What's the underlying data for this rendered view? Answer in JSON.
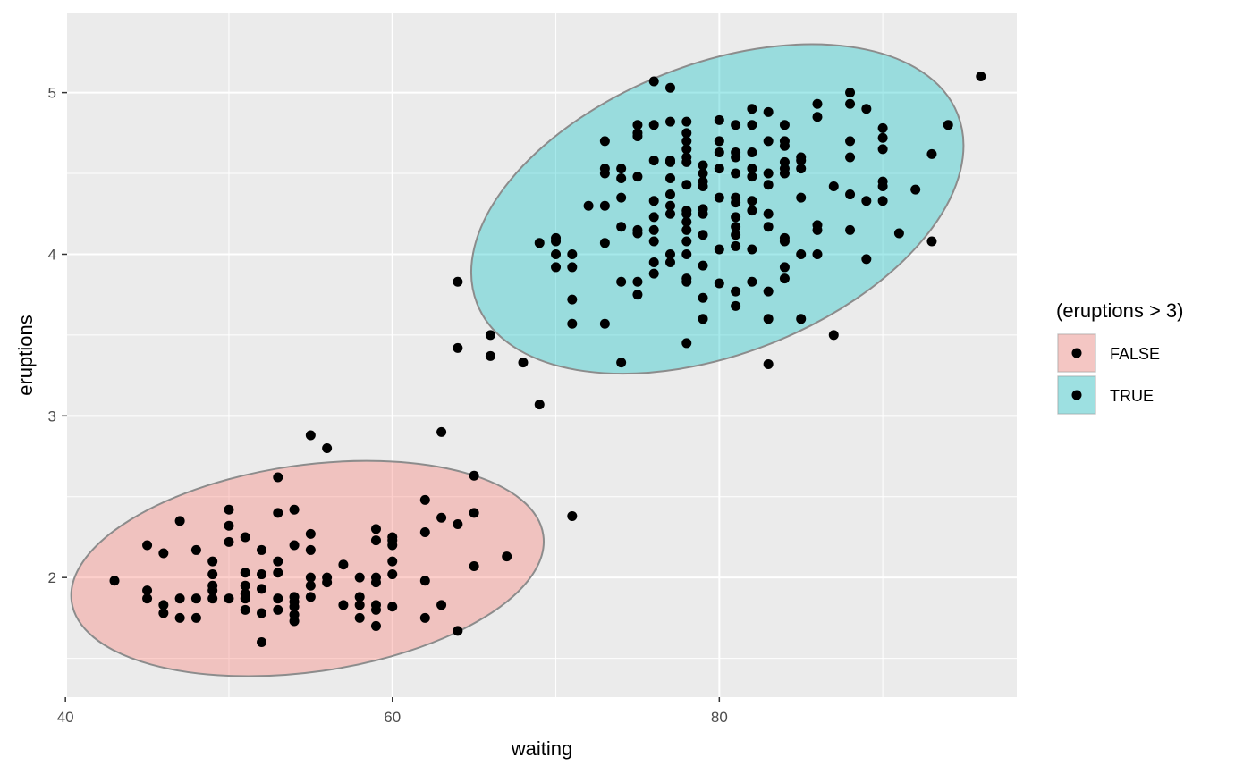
{
  "chart_data": {
    "type": "scatter",
    "title": "",
    "xlabel": "waiting",
    "ylabel": "eruptions",
    "xlim": [
      40.1,
      98.2
    ],
    "ylim": [
      1.26,
      5.49
    ],
    "x_ticks": [
      40,
      60,
      80
    ],
    "x_tick_labels": [
      "40",
      "60",
      "80"
    ],
    "y_ticks": [
      2,
      3,
      4,
      5
    ],
    "y_tick_labels": [
      "2",
      "3",
      "4",
      "5"
    ],
    "grid": true,
    "legend": {
      "title": "(eruptions > 3)",
      "position": "right",
      "entries": [
        {
          "label": "FALSE",
          "fill": "#F8766D"
        },
        {
          "label": "TRUE",
          "fill": "#00BFC4"
        }
      ]
    },
    "ellipses": [
      {
        "group": "FALSE",
        "fill": "#F8766D"
      },
      {
        "group": "TRUE",
        "fill": "#00BFC4"
      }
    ],
    "colors": {
      "panel": "#EBEBEB",
      "grid": "#FFFFFF",
      "point": "#000000",
      "ellipse_stroke": "#8C8C8C"
    },
    "points": [
      [
        43,
        1.98
      ],
      [
        45,
        1.87
      ],
      [
        45,
        1.92
      ],
      [
        45,
        2.2
      ],
      [
        46,
        1.78
      ],
      [
        46,
        1.83
      ],
      [
        46,
        2.15
      ],
      [
        47,
        1.75
      ],
      [
        47,
        1.87
      ],
      [
        47,
        2.35
      ],
      [
        48,
        1.75
      ],
      [
        48,
        1.87
      ],
      [
        48,
        2.17
      ],
      [
        49,
        1.87
      ],
      [
        49,
        1.92
      ],
      [
        49,
        1.95
      ],
      [
        49,
        2.02
      ],
      [
        49,
        2.1
      ],
      [
        50,
        1.87
      ],
      [
        50,
        2.22
      ],
      [
        50,
        2.32
      ],
      [
        50,
        2.42
      ],
      [
        51,
        1.8
      ],
      [
        51,
        1.87
      ],
      [
        51,
        1.9
      ],
      [
        51,
        1.95
      ],
      [
        51,
        2.03
      ],
      [
        51,
        2.25
      ],
      [
        52,
        1.6
      ],
      [
        52,
        1.78
      ],
      [
        52,
        1.93
      ],
      [
        52,
        2.02
      ],
      [
        52,
        2.17
      ],
      [
        53,
        1.8
      ],
      [
        53,
        1.87
      ],
      [
        53,
        2.03
      ],
      [
        53,
        2.1
      ],
      [
        53,
        2.4
      ],
      [
        53,
        2.62
      ],
      [
        54,
        1.73
      ],
      [
        54,
        1.77
      ],
      [
        54,
        1.82
      ],
      [
        54,
        1.85
      ],
      [
        54,
        1.88
      ],
      [
        54,
        2.2
      ],
      [
        54,
        2.42
      ],
      [
        55,
        1.88
      ],
      [
        55,
        1.95
      ],
      [
        55,
        2.0
      ],
      [
        55,
        2.17
      ],
      [
        55,
        2.27
      ],
      [
        55,
        2.88
      ],
      [
        56,
        1.97
      ],
      [
        56,
        2.0
      ],
      [
        56,
        2.8
      ],
      [
        57,
        1.83
      ],
      [
        57,
        2.08
      ],
      [
        58,
        1.75
      ],
      [
        58,
        1.83
      ],
      [
        58,
        1.88
      ],
      [
        58,
        2.0
      ],
      [
        59,
        1.7
      ],
      [
        59,
        1.8
      ],
      [
        59,
        1.83
      ],
      [
        59,
        1.97
      ],
      [
        59,
        2.0
      ],
      [
        59,
        2.23
      ],
      [
        59,
        2.3
      ],
      [
        60,
        1.82
      ],
      [
        60,
        2.02
      ],
      [
        60,
        2.1
      ],
      [
        60,
        2.2
      ],
      [
        60,
        2.23
      ],
      [
        60,
        2.25
      ],
      [
        62,
        1.75
      ],
      [
        62,
        1.98
      ],
      [
        62,
        2.28
      ],
      [
        62,
        2.48
      ],
      [
        63,
        1.83
      ],
      [
        63,
        2.37
      ],
      [
        63,
        2.9
      ],
      [
        64,
        1.67
      ],
      [
        64,
        2.33
      ],
      [
        64,
        3.42
      ],
      [
        64,
        3.83
      ],
      [
        65,
        2.07
      ],
      [
        65,
        2.4
      ],
      [
        65,
        2.63
      ],
      [
        66,
        3.37
      ],
      [
        66,
        3.5
      ],
      [
        67,
        2.13
      ],
      [
        68,
        3.33
      ],
      [
        69,
        3.07
      ],
      [
        69,
        4.07
      ],
      [
        70,
        3.92
      ],
      [
        70,
        4.0
      ],
      [
        70,
        4.08
      ],
      [
        70,
        4.1
      ],
      [
        71,
        2.38
      ],
      [
        71,
        3.57
      ],
      [
        71,
        3.72
      ],
      [
        71,
        3.92
      ],
      [
        71,
        4.0
      ],
      [
        72,
        4.3
      ],
      [
        73,
        3.57
      ],
      [
        73,
        4.07
      ],
      [
        73,
        4.3
      ],
      [
        73,
        4.5
      ],
      [
        73,
        4.53
      ],
      [
        73,
        4.7
      ],
      [
        74,
        3.33
      ],
      [
        74,
        3.83
      ],
      [
        74,
        4.17
      ],
      [
        74,
        4.35
      ],
      [
        74,
        4.47
      ],
      [
        74,
        4.53
      ],
      [
        75,
        3.75
      ],
      [
        75,
        3.83
      ],
      [
        75,
        4.13
      ],
      [
        75,
        4.15
      ],
      [
        75,
        4.48
      ],
      [
        75,
        4.73
      ],
      [
        75,
        4.75
      ],
      [
        75,
        4.8
      ],
      [
        76,
        3.88
      ],
      [
        76,
        3.95
      ],
      [
        76,
        4.08
      ],
      [
        76,
        4.15
      ],
      [
        76,
        4.23
      ],
      [
        76,
        4.33
      ],
      [
        76,
        4.58
      ],
      [
        76,
        4.8
      ],
      [
        76,
        5.07
      ],
      [
        77,
        3.95
      ],
      [
        77,
        4.0
      ],
      [
        77,
        4.25
      ],
      [
        77,
        4.3
      ],
      [
        77,
        4.37
      ],
      [
        77,
        4.47
      ],
      [
        77,
        4.57
      ],
      [
        77,
        4.58
      ],
      [
        77,
        4.82
      ],
      [
        77,
        5.03
      ],
      [
        78,
        3.45
      ],
      [
        78,
        3.83
      ],
      [
        78,
        3.85
      ],
      [
        78,
        4.0
      ],
      [
        78,
        4.08
      ],
      [
        78,
        4.15
      ],
      [
        78,
        4.2
      ],
      [
        78,
        4.25
      ],
      [
        78,
        4.27
      ],
      [
        78,
        4.43
      ],
      [
        78,
        4.57
      ],
      [
        78,
        4.6
      ],
      [
        78,
        4.65
      ],
      [
        78,
        4.7
      ],
      [
        78,
        4.75
      ],
      [
        78,
        4.82
      ],
      [
        79,
        3.6
      ],
      [
        79,
        3.73
      ],
      [
        79,
        3.93
      ],
      [
        79,
        4.12
      ],
      [
        79,
        4.25
      ],
      [
        79,
        4.28
      ],
      [
        79,
        4.42
      ],
      [
        79,
        4.45
      ],
      [
        79,
        4.5
      ],
      [
        79,
        4.55
      ],
      [
        80,
        3.82
      ],
      [
        80,
        4.03
      ],
      [
        80,
        4.35
      ],
      [
        80,
        4.53
      ],
      [
        80,
        4.63
      ],
      [
        80,
        4.7
      ],
      [
        80,
        4.83
      ],
      [
        81,
        3.68
      ],
      [
        81,
        3.77
      ],
      [
        81,
        4.05
      ],
      [
        81,
        4.12
      ],
      [
        81,
        4.17
      ],
      [
        81,
        4.23
      ],
      [
        81,
        4.32
      ],
      [
        81,
        4.35
      ],
      [
        81,
        4.5
      ],
      [
        81,
        4.6
      ],
      [
        81,
        4.63
      ],
      [
        81,
        4.8
      ],
      [
        82,
        3.83
      ],
      [
        82,
        4.03
      ],
      [
        82,
        4.27
      ],
      [
        82,
        4.33
      ],
      [
        82,
        4.48
      ],
      [
        82,
        4.53
      ],
      [
        82,
        4.63
      ],
      [
        82,
        4.8
      ],
      [
        82,
        4.9
      ],
      [
        83,
        3.32
      ],
      [
        83,
        3.6
      ],
      [
        83,
        3.77
      ],
      [
        83,
        4.17
      ],
      [
        83,
        4.25
      ],
      [
        83,
        4.43
      ],
      [
        83,
        4.5
      ],
      [
        83,
        4.7
      ],
      [
        83,
        4.88
      ],
      [
        84,
        3.85
      ],
      [
        84,
        3.92
      ],
      [
        84,
        4.08
      ],
      [
        84,
        4.1
      ],
      [
        84,
        4.5
      ],
      [
        84,
        4.53
      ],
      [
        84,
        4.57
      ],
      [
        84,
        4.67
      ],
      [
        84,
        4.7
      ],
      [
        84,
        4.8
      ],
      [
        85,
        3.6
      ],
      [
        85,
        4.0
      ],
      [
        85,
        4.35
      ],
      [
        85,
        4.53
      ],
      [
        85,
        4.58
      ],
      [
        85,
        4.6
      ],
      [
        86,
        4.0
      ],
      [
        86,
        4.15
      ],
      [
        86,
        4.18
      ],
      [
        86,
        4.85
      ],
      [
        86,
        4.93
      ],
      [
        87,
        3.5
      ],
      [
        87,
        4.42
      ],
      [
        88,
        4.15
      ],
      [
        88,
        4.37
      ],
      [
        88,
        4.6
      ],
      [
        88,
        4.7
      ],
      [
        88,
        4.93
      ],
      [
        88,
        5.0
      ],
      [
        89,
        3.97
      ],
      [
        89,
        4.33
      ],
      [
        89,
        4.9
      ],
      [
        90,
        4.33
      ],
      [
        90,
        4.42
      ],
      [
        90,
        4.45
      ],
      [
        90,
        4.65
      ],
      [
        90,
        4.72
      ],
      [
        90,
        4.78
      ],
      [
        91,
        4.13
      ],
      [
        92,
        4.4
      ],
      [
        93,
        4.08
      ],
      [
        93,
        4.62
      ],
      [
        94,
        4.8
      ],
      [
        96,
        5.1
      ]
    ]
  }
}
